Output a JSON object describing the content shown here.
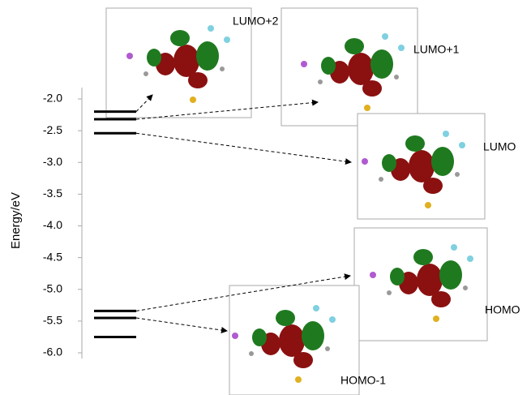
{
  "chart_data": {
    "type": "energy-levels",
    "y_label": "Energy/eV",
    "categories": [
      "LUMO+2",
      "LUMO+1",
      "LUMO",
      "HOMO",
      "HOMO-1",
      null
    ],
    "values": [
      -2.2,
      -2.32,
      -2.54,
      -5.34,
      -5.45,
      -5.75
    ],
    "color": "#000000",
    "ylim": [
      -6.2,
      -1.8
    ],
    "yticks": [
      {
        "value": -2,
        "label": "-2.0"
      },
      {
        "value": -2.5,
        "label": "-2.5"
      },
      {
        "value": -3,
        "label": "-3.0"
      },
      {
        "value": -3.5,
        "label": "-3.5"
      },
      {
        "value": -4,
        "label": "-4.0"
      },
      {
        "value": -4.5,
        "label": "-4.5"
      },
      {
        "value": -5,
        "label": "-5.0"
      },
      {
        "value": -5.5,
        "label": "-5.5"
      },
      {
        "value": -6,
        "label": "-6.0"
      }
    ]
  }
}
